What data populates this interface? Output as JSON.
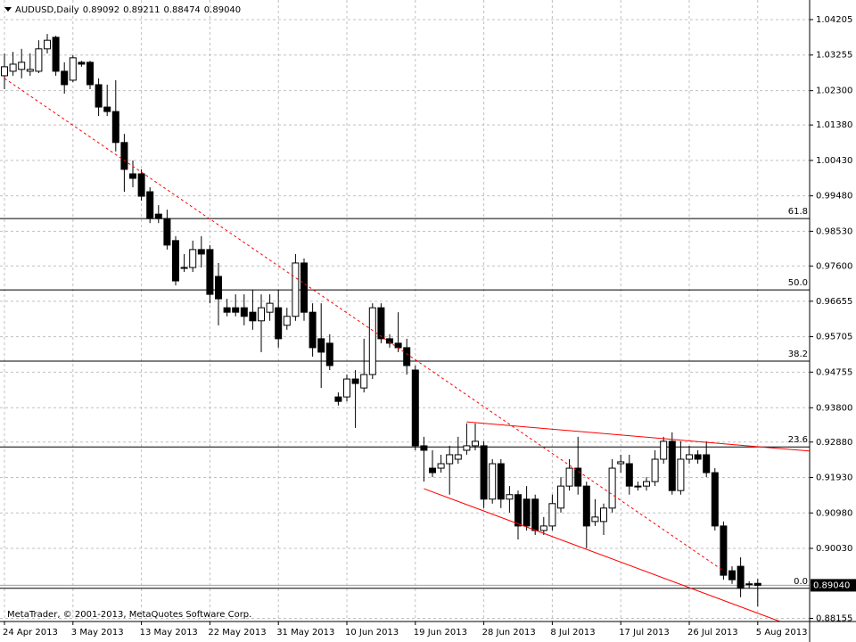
{
  "chart_data": {
    "type": "candlestick",
    "info": {
      "symbol": "AUDUSD,Daily",
      "ohlc_labels": [
        "0.89092",
        "0.89211",
        "0.88474",
        "0.89040"
      ]
    },
    "footer": "MetaTrader, © 2001-2013, MetaQuotes Software Corp.",
    "categories": [
      "24 Apr 2013",
      null,
      null,
      null,
      null,
      null,
      null,
      null,
      "3 May 2013",
      null,
      null,
      null,
      null,
      null,
      null,
      null,
      "13 May 2013",
      null,
      null,
      null,
      null,
      null,
      null,
      null,
      "22 May 2013",
      null,
      null,
      null,
      null,
      null,
      null,
      null,
      "31 May 2013",
      null,
      null,
      null,
      null,
      null,
      null,
      null,
      "10 Jun 2013",
      null,
      null,
      null,
      null,
      null,
      null,
      null,
      "19 Jun 2013",
      null,
      null,
      null,
      null,
      null,
      null,
      null,
      "28 Jun 2013",
      null,
      null,
      null,
      null,
      null,
      null,
      null,
      "8 Jul 2013",
      null,
      null,
      null,
      null,
      null,
      null,
      null,
      "17 Jul 2013",
      null,
      null,
      null,
      null,
      null,
      null,
      null,
      "26 Jul 2013",
      null,
      null,
      null,
      null,
      null,
      null,
      null,
      "5 Aug 2013"
    ],
    "open": [
      1.027,
      1.0282,
      1.0287,
      1.0282,
      1.0282,
      1.0342,
      1.0373,
      1.0282,
      1.0258,
      1.0306,
      1.0306,
      1.0246,
      1.0186,
      1.0174,
      1.0091,
      1.0007,
      1.0007,
      0.9959,
      0.9899,
      0.9887,
      0.9828,
      0.9756,
      0.9756,
      0.9804,
      0.9804,
      0.9732,
      0.9648,
      0.9648,
      0.9648,
      0.9636,
      0.9613,
      0.9636,
      0.9648,
      0.9601,
      0.9625,
      0.9768,
      0.9636,
      0.9565,
      0.9553,
      0.9409,
      0.9409,
      0.9457,
      0.9433,
      0.9469,
      0.9648,
      0.9565,
      0.9553,
      0.9541,
      0.9481,
      0.9278,
      0.9218,
      0.9218,
      0.923,
      0.9242,
      0.9266,
      0.9278,
      0.9278,
      0.9135,
      0.923,
      0.9135,
      0.9147,
      0.9135,
      0.9135,
      0.9051,
      0.9063,
      0.9111,
      0.917,
      0.9218,
      0.917,
      0.9075,
      0.9075,
      0.9111,
      0.923,
      0.923,
      0.917,
      0.917,
      0.9182,
      0.9242,
      0.929,
      0.9158,
      0.9242,
      0.9254,
      0.9254,
      0.9206,
      0.9063,
      0.8943,
      0.8955,
      0.8908,
      0.89092
    ],
    "high": [
      1.033,
      1.0334,
      1.0342,
      1.033,
      1.0365,
      1.0382,
      1.0377,
      1.0306,
      1.0325,
      1.031,
      1.031,
      1.0263,
      1.0246,
      1.0258,
      1.0114,
      1.0043,
      1.0019,
      0.9971,
      0.9923,
      0.9911,
      0.984,
      0.9792,
      0.9828,
      0.984,
      0.9816,
      0.9768,
      0.9672,
      0.9684,
      0.9684,
      0.9696,
      0.9684,
      0.9684,
      0.9696,
      0.9648,
      0.9792,
      0.978,
      0.966,
      0.966,
      0.9577,
      0.9421,
      0.9469,
      0.9481,
      0.9565,
      0.966,
      0.966,
      0.9577,
      0.9636,
      0.9565,
      0.9493,
      0.9302,
      0.9266,
      0.9254,
      0.9278,
      0.9302,
      0.9338,
      0.9338,
      0.929,
      0.9242,
      0.9242,
      0.917,
      0.9158,
      0.917,
      0.9147,
      0.9087,
      0.9147,
      0.9194,
      0.9242,
      0.9302,
      0.9182,
      0.9135,
      0.9123,
      0.9242,
      0.9254,
      0.9254,
      0.9182,
      0.9194,
      0.9266,
      0.9302,
      0.9314,
      0.929,
      0.9278,
      0.9266,
      0.929,
      0.9218,
      0.9075,
      0.8955,
      0.8979,
      0.8915,
      0.89211
    ],
    "low": [
      1.0234,
      1.027,
      1.0263,
      1.027,
      1.0277,
      1.033,
      1.027,
      1.0222,
      1.0253,
      1.0294,
      1.0234,
      1.0162,
      1.0162,
      1.0067,
      0.9959,
      0.9971,
      0.9935,
      0.9875,
      0.9875,
      0.9804,
      0.9708,
      0.9744,
      0.9744,
      0.9756,
      0.966,
      0.9601,
      0.9625,
      0.9625,
      0.9601,
      0.9589,
      0.9529,
      0.9613,
      0.9541,
      0.9589,
      0.9613,
      0.9613,
      0.9517,
      0.9433,
      0.9481,
      0.9386,
      0.9397,
      0.9326,
      0.9421,
      0.9457,
      0.9553,
      0.9541,
      0.9529,
      0.9469,
      0.9266,
      0.9182,
      0.9194,
      0.9206,
      0.9147,
      0.923,
      0.9254,
      0.9266,
      0.9111,
      0.9123,
      0.9111,
      0.9099,
      0.9027,
      0.9051,
      0.9039,
      0.9039,
      0.9051,
      0.9099,
      0.9158,
      0.9147,
      0.9003,
      0.9063,
      0.9039,
      0.9099,
      0.9206,
      0.9147,
      0.9158,
      0.9158,
      0.917,
      0.923,
      0.9147,
      0.9147,
      0.923,
      0.923,
      0.9194,
      0.9051,
      0.8919,
      0.8908,
      0.8872,
      0.8896,
      0.88474
    ],
    "close": [
      1.0294,
      1.0301,
      1.0306,
      1.0287,
      1.0342,
      1.0365,
      1.0282,
      1.0246,
      1.0318,
      1.0301,
      1.0246,
      1.0186,
      1.0174,
      1.0091,
      1.0019,
      0.9995,
      0.9947,
      0.9887,
      0.9887,
      0.9816,
      0.972,
      0.9756,
      0.9804,
      0.9792,
      0.9684,
      0.9672,
      0.9636,
      0.9636,
      0.9625,
      0.9613,
      0.9648,
      0.966,
      0.9565,
      0.9625,
      0.9768,
      0.9636,
      0.9541,
      0.9529,
      0.9493,
      0.9397,
      0.9457,
      0.9445,
      0.9469,
      0.9648,
      0.9565,
      0.9553,
      0.9541,
      0.9493,
      0.9278,
      0.9266,
      0.9206,
      0.923,
      0.9254,
      0.9254,
      0.9278,
      0.929,
      0.9135,
      0.923,
      0.9135,
      0.9147,
      0.9063,
      0.9063,
      0.9051,
      0.9063,
      0.9123,
      0.917,
      0.9218,
      0.917,
      0.9063,
      0.9087,
      0.9111,
      0.9218,
      0.9235,
      0.917,
      0.9168,
      0.9182,
      0.9242,
      0.929,
      0.9158,
      0.9242,
      0.9254,
      0.9242,
      0.9206,
      0.9063,
      0.8931,
      0.8919,
      0.8896,
      0.8908,
      0.8904
    ],
    "ylim": [
      0.8807,
      1.0473
    ],
    "yticks": [
      1.04205,
      1.03255,
      {
        "value": 1.023,
        "label": "1.02300"
      },
      {
        "value": 1.0138,
        "label": "1.01380"
      },
      {
        "value": 1.0043,
        "label": "1.00430"
      },
      {
        "value": 0.9948,
        "label": "0.99480"
      },
      {
        "value": 0.9853,
        "label": "0.98530"
      },
      {
        "value": 0.976,
        "label": "0.97600"
      },
      0.96655,
      0.95705,
      0.94755,
      {
        "value": 0.938,
        "label": "0.93800"
      },
      {
        "value": 0.9288,
        "label": "0.92880"
      },
      {
        "value": 0.9193,
        "label": "0.91930"
      },
      {
        "value": 0.9098,
        "label": "0.90980"
      },
      {
        "value": 0.9003,
        "label": "0.90030"
      },
      0.88155
    ],
    "last_price": {
      "value": 0.8904,
      "label": "0.89040"
    },
    "grid": true,
    "fib_levels": [
      {
        "label": "61.8",
        "price": 0.9887
      },
      {
        "label": "50.0",
        "price": 0.9696
      },
      {
        "label": "38.2",
        "price": 0.9505
      },
      {
        "label": "23.6",
        "price": 0.9275
      },
      {
        "label": "0.0",
        "price": 0.8896
      }
    ],
    "trendlines": [
      {
        "color": "#ff0000",
        "dashed": true,
        "x": [
          0,
          84
        ],
        "y": [
          1.0263,
          0.8943
        ]
      },
      {
        "color": "#ff0000",
        "dashed": false,
        "x": [
          54,
          94
        ],
        "y": [
          0.9342,
          0.9264
        ]
      },
      {
        "color": "#ff0000",
        "dashed": false,
        "x": [
          49,
          90.6
        ],
        "y": [
          0.9163,
          0.8807
        ]
      }
    ],
    "bull_color": "#ffffff",
    "bear_color": "#000000"
  }
}
